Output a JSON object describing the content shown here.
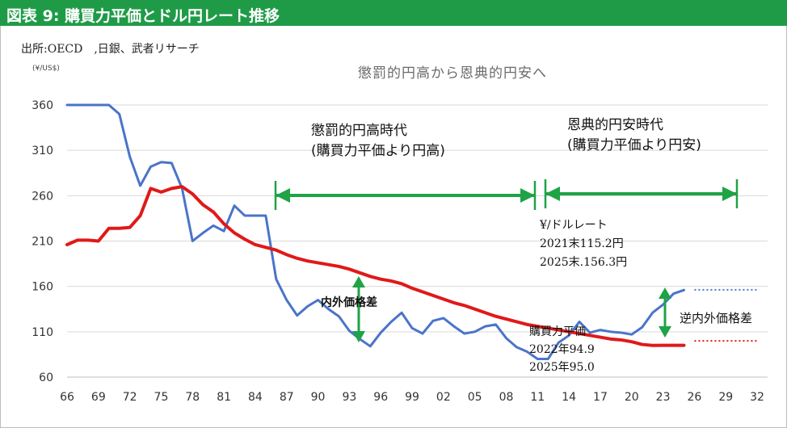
{
  "header": {
    "title": "図表 9: 購買力平価とドル円レート推移"
  },
  "source": "出所:OECD　,日銀、武者リサーチ",
  "unit": "(¥/US$)",
  "headline": "懲罰的円高から恩典的円安へ",
  "eras": {
    "punitive": {
      "line1": "懲罰的円高時代",
      "line2": "(購買力平価より円高)"
    },
    "blessed": {
      "line1": "恩典的円安時代",
      "line2": "(購買力平価より円安)"
    }
  },
  "fx_note": {
    "line1": "¥/ドルレート",
    "line2": "2021末115.2円",
    "line3": "2025末.156.3円"
  },
  "ppp_note": {
    "line1": "購買力平価",
    "line2": "2022年94.9",
    "line3": "2025年95.0"
  },
  "gap_labels": {
    "inner": "内外価格差",
    "reverse": "逆内外価格差"
  },
  "colors": {
    "header_bg": "#1f9b48",
    "fx_line": "#4a74c9",
    "ppp_line": "#e01919",
    "arrow": "#1fa346",
    "grid": "#d9d9d9"
  },
  "chart_data": {
    "type": "line",
    "title": "",
    "xlabel": "",
    "ylabel": "",
    "x_ticks": [
      "66",
      "69",
      "72",
      "75",
      "78",
      "81",
      "84",
      "87",
      "90",
      "93",
      "96",
      "99",
      "02",
      "05",
      "08",
      "11",
      "14",
      "17",
      "20",
      "23",
      "26",
      "29",
      "32"
    ],
    "y_ticks": [
      360,
      310,
      260,
      210,
      160,
      110,
      60
    ],
    "ylim": [
      60,
      360
    ],
    "xlim": [
      1966,
      2033
    ],
    "grid": "horizontal",
    "series": [
      {
        "name": "¥/ドルレート",
        "x": [
          1966,
          1967,
          1968,
          1969,
          1970,
          1971,
          1972,
          1973,
          1974,
          1975,
          1976,
          1977,
          1978,
          1979,
          1980,
          1981,
          1982,
          1983,
          1984,
          1985,
          1986,
          1987,
          1988,
          1989,
          1990,
          1991,
          1992,
          1993,
          1994,
          1995,
          1996,
          1997,
          1998,
          1999,
          2000,
          2001,
          2002,
          2003,
          2004,
          2005,
          2006,
          2007,
          2008,
          2009,
          2010,
          2011,
          2012,
          2013,
          2014,
          2015,
          2016,
          2017,
          2018,
          2019,
          2020,
          2021,
          2022,
          2023,
          2024,
          2025
        ],
        "values": [
          360,
          360,
          360,
          360,
          360,
          350,
          303,
          271,
          292,
          297,
          296,
          268,
          210,
          219,
          227,
          221,
          249,
          238,
          238,
          238,
          168,
          145,
          128,
          138,
          145,
          135,
          127,
          111,
          102,
          94,
          109,
          121,
          131,
          114,
          108,
          122,
          125,
          116,
          108,
          110,
          116,
          118,
          103,
          93,
          88,
          80,
          80,
          98,
          106,
          121,
          109,
          112,
          110,
          109,
          107,
          115,
          131,
          140,
          152,
          156
        ]
      },
      {
        "name": "購買力平価",
        "x": [
          1966,
          1967,
          1968,
          1969,
          1970,
          1971,
          1972,
          1973,
          1974,
          1975,
          1976,
          1977,
          1978,
          1979,
          1980,
          1981,
          1982,
          1983,
          1984,
          1985,
          1986,
          1987,
          1988,
          1989,
          1990,
          1991,
          1992,
          1993,
          1994,
          1995,
          1996,
          1997,
          1998,
          1999,
          2000,
          2001,
          2002,
          2003,
          2004,
          2005,
          2006,
          2007,
          2008,
          2009,
          2010,
          2011,
          2012,
          2013,
          2014,
          2015,
          2016,
          2017,
          2018,
          2019,
          2020,
          2021,
          2022,
          2023,
          2024,
          2025
        ],
        "values": [
          206,
          211,
          211,
          210,
          224,
          224,
          225,
          238,
          268,
          264,
          268,
          270,
          262,
          250,
          242,
          229,
          219,
          212,
          206,
          203,
          200,
          195,
          191,
          188,
          186,
          184,
          182,
          179,
          175,
          171,
          168,
          166,
          163,
          158,
          154,
          150,
          146,
          142,
          139,
          135,
          131,
          127,
          124,
          121,
          118,
          116,
          114,
          112,
          110,
          108,
          106,
          104,
          102,
          101,
          99,
          96,
          94.9,
          95,
          95,
          95
        ]
      }
    ],
    "projections": [
      {
        "name": "¥/ドルレート",
        "x": [
          2026,
          2033
        ],
        "values": [
          156.3,
          156.3
        ]
      },
      {
        "name": "購買力平価",
        "x": [
          2026,
          2033
        ],
        "values": [
          100,
          100
        ]
      }
    ]
  }
}
